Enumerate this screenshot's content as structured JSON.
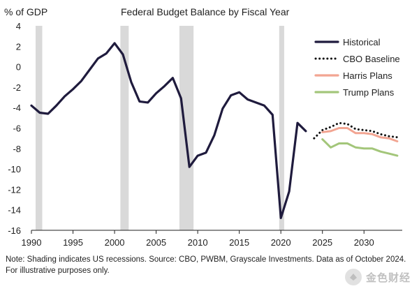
{
  "chart_data": {
    "type": "line",
    "title": "Federal Budget Balance by Fiscal Year",
    "ylabel": "% of GDP",
    "xlabel": "",
    "xlim": [
      1990,
      2035
    ],
    "ylim": [
      -16,
      4
    ],
    "yticks": [
      4,
      2,
      0,
      -2,
      -4,
      -6,
      -8,
      -10,
      -12,
      -14,
      -16
    ],
    "xticks": [
      1990,
      1995,
      2000,
      2005,
      2010,
      2015,
      2020,
      2025,
      2030
    ],
    "recessions": [
      [
        1990.5,
        1991.3
      ],
      [
        2000.7,
        2001.7
      ],
      [
        2007.8,
        2009.5
      ],
      [
        2019.8,
        2020.4
      ]
    ],
    "legend_position": "right",
    "series": [
      {
        "name": "Historical",
        "color": "#1f1b3d",
        "style": "solid",
        "x": [
          1990,
          1991,
          1992,
          1993,
          1994,
          1995,
          1996,
          1997,
          1998,
          1999,
          2000,
          2001,
          2002,
          2003,
          2004,
          2005,
          2006,
          2007,
          2008,
          2009,
          2010,
          2011,
          2012,
          2013,
          2014,
          2015,
          2016,
          2017,
          2018,
          2019,
          2020,
          2021,
          2022,
          2023
        ],
        "y": [
          -3.8,
          -4.5,
          -4.6,
          -3.8,
          -2.9,
          -2.2,
          -1.4,
          -0.3,
          0.8,
          1.3,
          2.3,
          1.2,
          -1.5,
          -3.4,
          -3.5,
          -2.6,
          -1.9,
          -1.1,
          -3.1,
          -9.8,
          -8.7,
          -8.4,
          -6.7,
          -4.1,
          -2.8,
          -2.5,
          -3.2,
          -3.5,
          -3.8,
          -4.7,
          -14.8,
          -12.2,
          -5.5,
          -6.3
        ]
      },
      {
        "name": "CBO Baseline",
        "color": "#111111",
        "style": "dotted",
        "x": [
          2024,
          2025,
          2026,
          2027,
          2028,
          2029,
          2030,
          2031,
          2032,
          2033,
          2034
        ],
        "y": [
          -7.0,
          -6.2,
          -5.9,
          -5.5,
          -5.6,
          -6.1,
          -6.2,
          -6.3,
          -6.6,
          -6.8,
          -6.9
        ]
      },
      {
        "name": "Harris Plans",
        "color": "#f2a592",
        "style": "solid",
        "x": [
          2025,
          2026,
          2027,
          2028,
          2029,
          2030,
          2031,
          2032,
          2033,
          2034
        ],
        "y": [
          -6.4,
          -6.3,
          -6.0,
          -6.0,
          -6.5,
          -6.5,
          -6.6,
          -6.9,
          -7.0,
          -7.3
        ]
      },
      {
        "name": "Trump Plans",
        "color": "#a3c67a",
        "style": "solid",
        "x": [
          2025,
          2026,
          2027,
          2028,
          2029,
          2030,
          2031,
          2032,
          2033,
          2034
        ],
        "y": [
          -7.1,
          -7.9,
          -7.5,
          -7.5,
          -7.9,
          -8.0,
          -8.0,
          -8.3,
          -8.5,
          -8.7
        ]
      }
    ]
  },
  "note": "Note: Shading indicates US recessions. Source: CBO, PWBM, Grayscale Investments. Data as of October 2024. For illustrative purposes only.",
  "watermark": {
    "text": "金色财经",
    "icon": "gold-coin-icon"
  }
}
